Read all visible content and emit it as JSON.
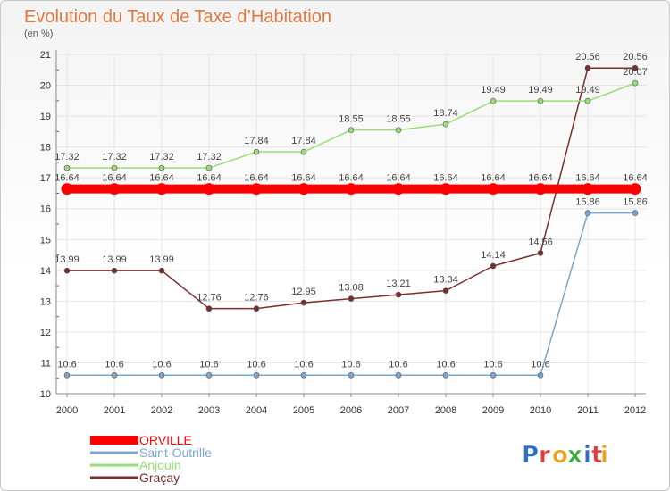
{
  "chart_data": {
    "type": "line",
    "title": "Evolution du Taux de Taxe d’Habitation",
    "subtitle": "(en %)",
    "x": [
      "2000",
      "2001",
      "2002",
      "2003",
      "2004",
      "2005",
      "2006",
      "2007",
      "2008",
      "2009",
      "2010",
      "2011",
      "2012"
    ],
    "ylim": [
      10,
      21
    ],
    "yticks": [
      "10",
      "11",
      "12",
      "13",
      "14",
      "15",
      "16",
      "17",
      "18",
      "19",
      "20",
      "21"
    ],
    "grid": true,
    "legend_position": "bottom-left",
    "series": [
      {
        "name": "ORVILLE",
        "color": "#ff0000",
        "values": [
          16.64,
          16.64,
          16.64,
          16.64,
          16.64,
          16.64,
          16.64,
          16.64,
          16.64,
          16.64,
          16.64,
          16.64,
          16.64
        ],
        "labels": [
          "16.64",
          "16.64",
          "16.64",
          "16.64",
          "16.64",
          "16.64",
          "16.64",
          "16.64",
          "16.64",
          "16.64",
          "16.64",
          "16.64",
          "16.64"
        ]
      },
      {
        "name": "Saint-Outrille",
        "color": "#7ba7cc",
        "values": [
          10.6,
          10.6,
          10.6,
          10.6,
          10.6,
          10.6,
          10.6,
          10.6,
          10.6,
          10.6,
          10.6,
          15.86,
          15.86
        ],
        "labels": [
          "10.6",
          "10.6",
          "10.6",
          "10.6",
          "10.6",
          "10.6",
          "10.6",
          "10.6",
          "10.6",
          "10.6",
          "10.6",
          "15.86",
          "15.86"
        ]
      },
      {
        "name": "Anjouin",
        "color": "#99dd77",
        "values": [
          17.32,
          17.32,
          17.32,
          17.32,
          17.84,
          17.84,
          18.55,
          18.55,
          18.74,
          19.49,
          19.49,
          19.49,
          20.07
        ],
        "labels": [
          "17.32",
          "17.32",
          "17.32",
          "17.32",
          "17.84",
          "17.84",
          "18.55",
          "18.55",
          "18.74",
          "19.49",
          "19.49",
          "19.49",
          "20.07"
        ]
      },
      {
        "name": "Graçay",
        "color": "#7a2e2e",
        "values": [
          13.99,
          13.99,
          13.99,
          12.76,
          12.76,
          12.95,
          13.08,
          13.21,
          13.34,
          14.14,
          14.56,
          20.56,
          20.56
        ],
        "labels": [
          "13.99",
          "13.99",
          "13.99",
          "12.76",
          "12.76",
          "12.95",
          "13.08",
          "13.21",
          "13.34",
          "14.14",
          "14.56",
          "20.56",
          "20.56"
        ]
      }
    ]
  },
  "logo": {
    "text": "Proxiti"
  }
}
